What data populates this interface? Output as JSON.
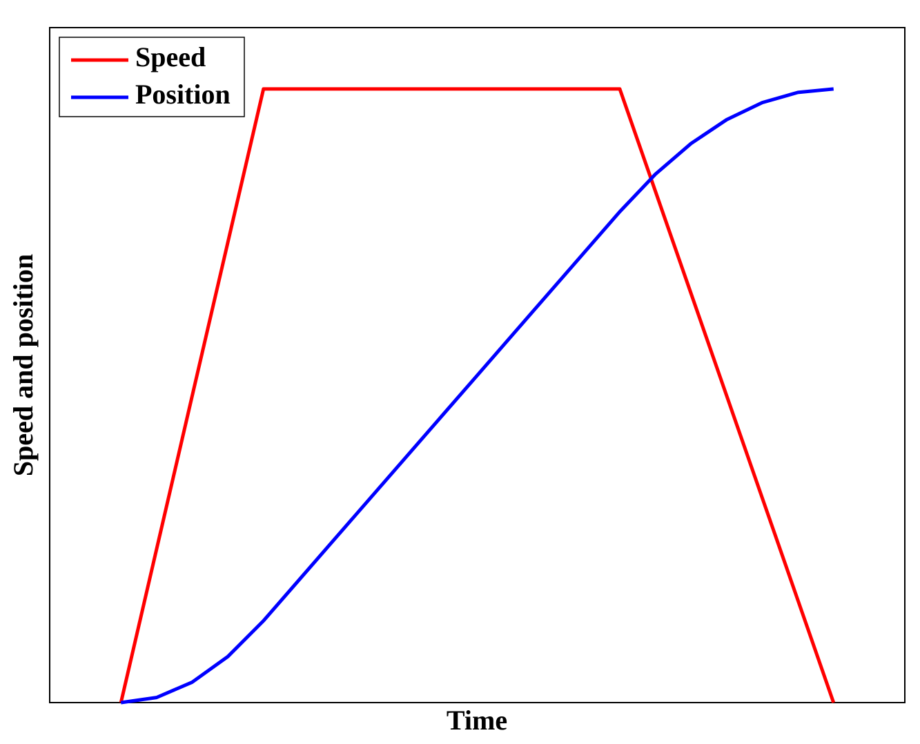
{
  "chart_data": {
    "type": "line",
    "xlabel": "Time",
    "ylabel": "Speed and position",
    "x": [
      1,
      1.5,
      2,
      2.5,
      3,
      3.5,
      4,
      4.5,
      5,
      5.5,
      6,
      6.5,
      7,
      7.5,
      8,
      8.5,
      9,
      9.5,
      10,
      10.5,
      11
    ],
    "series": [
      {
        "name": "Speed",
        "color": "#ff0000",
        "values": [
          0,
          0.25,
          0.5,
          0.75,
          1,
          1,
          1,
          1,
          1,
          1,
          1,
          1,
          1,
          1,
          1,
          0.8333,
          0.6667,
          0.5,
          0.3333,
          0.1667,
          0
        ]
      },
      {
        "name": "Position",
        "color": "#0000ff",
        "values": [
          0,
          0.0083,
          0.0333,
          0.075,
          0.1333,
          0.2,
          0.2667,
          0.3333,
          0.4,
          0.4667,
          0.5333,
          0.6,
          0.6667,
          0.7333,
          0.8,
          0.8611,
          0.9111,
          0.95,
          0.9778,
          0.9944,
          1
        ]
      }
    ],
    "xlim": [
      0,
      12
    ],
    "ylim": [
      0,
      1.1
    ],
    "legend": "upper left"
  }
}
